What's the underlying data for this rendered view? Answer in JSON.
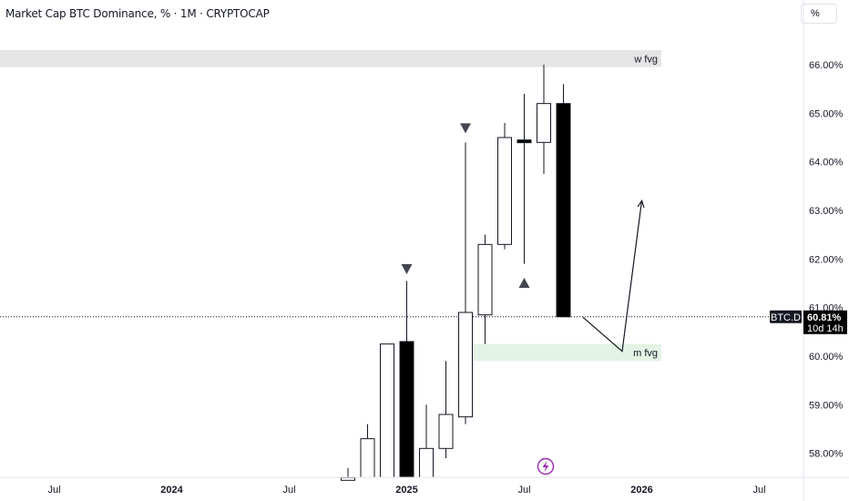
{
  "header": {
    "title": "Market Cap BTC Dominance, % · 1M · CRYPTOCAP",
    "unit_button": "%"
  },
  "icons": {
    "replay": "lightning-icon"
  },
  "chart_data": {
    "type": "candlestick",
    "symbol": "BTC.D",
    "interval": "1M",
    "price_scale": {
      "ticks": [
        "66.00%",
        "65.00%",
        "64.00%",
        "63.00%",
        "62.00%",
        "61.00%",
        "60.00%",
        "59.00%",
        "58.00%"
      ],
      "tick_values": [
        66,
        65,
        64,
        63,
        62,
        61,
        60,
        59,
        58
      ],
      "ylim": [
        57.5,
        67.3
      ]
    },
    "time_scale": {
      "labels": [
        {
          "text": "Jul",
          "i": -15
        },
        {
          "text": "2024",
          "i": -9
        },
        {
          "text": "Jul",
          "i": -3
        },
        {
          "text": "2025",
          "i": 3
        },
        {
          "text": "Jul",
          "i": 9
        },
        {
          "text": "2026",
          "i": 15
        },
        {
          "text": "Jul",
          "i": 21
        }
      ]
    },
    "candles": [
      {
        "i": 0,
        "o": 56.8,
        "h": 57.7,
        "l": 56.8,
        "c": 57.5
      },
      {
        "i": 1,
        "o": 57.5,
        "h": 58.6,
        "l": 57.2,
        "c": 58.3
      },
      {
        "i": 2,
        "o": 57.1,
        "h": 60.25,
        "l": 57.0,
        "c": 60.25
      },
      {
        "i": 3,
        "o": 60.3,
        "h": 61.55,
        "l": 57.3,
        "c": 57.4
      },
      {
        "i": 4,
        "o": 57.5,
        "h": 59.0,
        "l": 57.3,
        "c": 58.1
      },
      {
        "i": 5,
        "o": 58.1,
        "h": 59.9,
        "l": 57.9,
        "c": 58.8
      },
      {
        "i": 6,
        "o": 58.75,
        "h": 64.4,
        "l": 58.6,
        "c": 60.9
      },
      {
        "i": 7,
        "o": 60.85,
        "h": 62.5,
        "l": 60.25,
        "c": 62.3
      },
      {
        "i": 8,
        "o": 62.3,
        "h": 64.8,
        "l": 62.2,
        "c": 64.5
      },
      {
        "i": 9,
        "o": 64.45,
        "h": 65.4,
        "l": 61.9,
        "c": 64.4
      },
      {
        "i": 10,
        "o": 64.4,
        "h": 66.0,
        "l": 63.75,
        "c": 65.2
      },
      {
        "i": 11,
        "o": 65.2,
        "h": 65.6,
        "l": 60.8,
        "c": 60.81
      }
    ],
    "current_price": {
      "value": 60.81,
      "label": "BTC.D",
      "price": "60.81%",
      "countdown": "10d 14h"
    },
    "zones": [
      {
        "label": "w fvg",
        "y_top": 66.3,
        "y_bottom": 65.95,
        "i_start": -30,
        "i_end": 16,
        "color": "#e5e5e5"
      },
      {
        "label": "m fvg",
        "y_top": 60.25,
        "y_bottom": 59.9,
        "i_start": 5.6,
        "i_end": 16,
        "color": "#e3f3e5"
      }
    ],
    "markers": [
      {
        "shape": "triangle-down",
        "i": 3,
        "y": 61.8
      },
      {
        "shape": "triangle-down",
        "i": 6,
        "y": 64.7
      },
      {
        "shape": "triangle-up",
        "i": 9,
        "y": 61.5
      }
    ],
    "projection": {
      "points": [
        {
          "i": 12.0,
          "y": 60.8
        },
        {
          "i": 14.0,
          "y": 60.1
        },
        {
          "i": 15.0,
          "y": 63.2
        }
      ]
    }
  }
}
